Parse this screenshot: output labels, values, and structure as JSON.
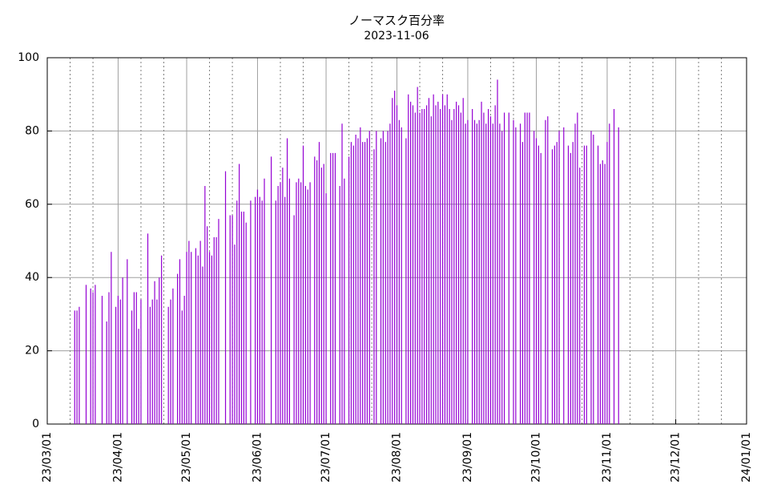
{
  "chart_data": {
    "type": "impulse",
    "title": "ノーマスク百分率",
    "subtitle": "2023-11-06",
    "color": "#9400d3",
    "xlim": [
      "2023-03-01",
      "2024-01-01"
    ],
    "xticks": [
      {
        "value": "2023-03-01",
        "label": "23/03/01"
      },
      {
        "value": "2023-04-01",
        "label": "23/04/01"
      },
      {
        "value": "2023-05-01",
        "label": "23/05/01"
      },
      {
        "value": "2023-06-01",
        "label": "23/06/01"
      },
      {
        "value": "2023-07-01",
        "label": "23/07/01"
      },
      {
        "value": "2023-08-01",
        "label": "23/08/01"
      },
      {
        "value": "2023-09-01",
        "label": "23/09/01"
      },
      {
        "value": "2023-10-01",
        "label": "23/10/01"
      },
      {
        "value": "2023-11-01",
        "label": "23/11/01"
      },
      {
        "value": "2023-12-01",
        "label": "23/12/01"
      },
      {
        "value": "2024-01-01",
        "label": "24/01/01"
      }
    ],
    "xminorticks": [
      "2023-03-11",
      "2023-03-21",
      "2023-04-11",
      "2023-04-21",
      "2023-05-11",
      "2023-05-21",
      "2023-06-11",
      "2023-06-21",
      "2023-07-11",
      "2023-07-21",
      "2023-08-11",
      "2023-08-21",
      "2023-09-11",
      "2023-09-21",
      "2023-10-11",
      "2023-10-21",
      "2023-11-11",
      "2023-11-21",
      "2023-12-11",
      "2023-12-21"
    ],
    "ylim": [
      0,
      100
    ],
    "yticks": [
      0,
      20,
      40,
      60,
      80,
      100
    ],
    "grid": true,
    "x": [
      "2023-03-13",
      "2023-03-14",
      "2023-03-15",
      "2023-03-16",
      "2023-03-17",
      "2023-03-18",
      "2023-03-19",
      "2023-03-20",
      "2023-03-21",
      "2023-03-22",
      "2023-03-23",
      "2023-03-24",
      "2023-03-25",
      "2023-03-26",
      "2023-03-27",
      "2023-03-28",
      "2023-03-29",
      "2023-03-30",
      "2023-03-31",
      "2023-04-01",
      "2023-04-02",
      "2023-04-03",
      "2023-04-04",
      "2023-04-05",
      "2023-04-06",
      "2023-04-07",
      "2023-04-08",
      "2023-04-09",
      "2023-04-10",
      "2023-04-11",
      "2023-04-12",
      "2023-04-13",
      "2023-04-14",
      "2023-04-15",
      "2023-04-16",
      "2023-04-17",
      "2023-04-18",
      "2023-04-19",
      "2023-04-20",
      "2023-04-21",
      "2023-04-22",
      "2023-04-23",
      "2023-04-24",
      "2023-04-25",
      "2023-04-26",
      "2023-04-27",
      "2023-04-28",
      "2023-04-29",
      "2023-04-30",
      "2023-05-01",
      "2023-05-02",
      "2023-05-03",
      "2023-05-04",
      "2023-05-05",
      "2023-05-06",
      "2023-05-07",
      "2023-05-08",
      "2023-05-09",
      "2023-05-10",
      "2023-05-11",
      "2023-05-12",
      "2023-05-13",
      "2023-05-14",
      "2023-05-15",
      "2023-05-16",
      "2023-05-17",
      "2023-05-18",
      "2023-05-19",
      "2023-05-20",
      "2023-05-21",
      "2023-05-22",
      "2023-05-23",
      "2023-05-24",
      "2023-05-25",
      "2023-05-26",
      "2023-05-27",
      "2023-05-28",
      "2023-05-29",
      "2023-05-30",
      "2023-05-31",
      "2023-06-01",
      "2023-06-02",
      "2023-06-03",
      "2023-06-04",
      "2023-06-05",
      "2023-06-06",
      "2023-06-07",
      "2023-06-08",
      "2023-06-09",
      "2023-06-10",
      "2023-06-11",
      "2023-06-12",
      "2023-06-13",
      "2023-06-14",
      "2023-06-15",
      "2023-06-16",
      "2023-06-17",
      "2023-06-18",
      "2023-06-19",
      "2023-06-20",
      "2023-06-21",
      "2023-06-22",
      "2023-06-23",
      "2023-06-24",
      "2023-06-25",
      "2023-06-26",
      "2023-06-27",
      "2023-06-28",
      "2023-06-29",
      "2023-06-30",
      "2023-07-01",
      "2023-07-02",
      "2023-07-03",
      "2023-07-04",
      "2023-07-05",
      "2023-07-06",
      "2023-07-07",
      "2023-07-08",
      "2023-07-09",
      "2023-07-10",
      "2023-07-11",
      "2023-07-12",
      "2023-07-13",
      "2023-07-14",
      "2023-07-15",
      "2023-07-16",
      "2023-07-17",
      "2023-07-18",
      "2023-07-19",
      "2023-07-20",
      "2023-07-21",
      "2023-07-22",
      "2023-07-23",
      "2023-07-24",
      "2023-07-25",
      "2023-07-26",
      "2023-07-27",
      "2023-07-28",
      "2023-07-29",
      "2023-07-30",
      "2023-07-31",
      "2023-08-01",
      "2023-08-02",
      "2023-08-03",
      "2023-08-04",
      "2023-08-05",
      "2023-08-06",
      "2023-08-07",
      "2023-08-08",
      "2023-08-09",
      "2023-08-10",
      "2023-08-11",
      "2023-08-12",
      "2023-08-13",
      "2023-08-14",
      "2023-08-15",
      "2023-08-16",
      "2023-08-17",
      "2023-08-18",
      "2023-08-19",
      "2023-08-20",
      "2023-08-21",
      "2023-08-22",
      "2023-08-23",
      "2023-08-24",
      "2023-08-25",
      "2023-08-26",
      "2023-08-27",
      "2023-08-28",
      "2023-08-29",
      "2023-08-30",
      "2023-08-31",
      "2023-09-01",
      "2023-09-02",
      "2023-09-03",
      "2023-09-04",
      "2023-09-05",
      "2023-09-06",
      "2023-09-07",
      "2023-09-08",
      "2023-09-09",
      "2023-09-10",
      "2023-09-11",
      "2023-09-12",
      "2023-09-13",
      "2023-09-14",
      "2023-09-15",
      "2023-09-16",
      "2023-09-17",
      "2023-09-18",
      "2023-09-19",
      "2023-09-20",
      "2023-09-21",
      "2023-09-22",
      "2023-09-23",
      "2023-09-24",
      "2023-09-25",
      "2023-09-26",
      "2023-09-27",
      "2023-09-28",
      "2023-09-29",
      "2023-09-30",
      "2023-10-01",
      "2023-10-02",
      "2023-10-03",
      "2023-10-04",
      "2023-10-05",
      "2023-10-06",
      "2023-10-07",
      "2023-10-08",
      "2023-10-09",
      "2023-10-10",
      "2023-10-11",
      "2023-10-12",
      "2023-10-13",
      "2023-10-14",
      "2023-10-15",
      "2023-10-16",
      "2023-10-17",
      "2023-10-18",
      "2023-10-19",
      "2023-10-20",
      "2023-10-21",
      "2023-10-22",
      "2023-10-23",
      "2023-10-24",
      "2023-10-25",
      "2023-10-26",
      "2023-10-27",
      "2023-10-28",
      "2023-10-29",
      "2023-10-30",
      "2023-10-31",
      "2023-11-01",
      "2023-11-02",
      "2023-11-03",
      "2023-11-04",
      "2023-11-05",
      "2023-11-06"
    ],
    "values": [
      31,
      31,
      32,
      null,
      null,
      38,
      null,
      37,
      36,
      38,
      null,
      null,
      35,
      null,
      28,
      36,
      47,
      null,
      32,
      35,
      34,
      40,
      null,
      45,
      null,
      31,
      36,
      36,
      26,
      34,
      null,
      null,
      52,
      32,
      34,
      39,
      34,
      40,
      46,
      null,
      null,
      32,
      34,
      37,
      null,
      41,
      45,
      31,
      35,
      47,
      50,
      47,
      null,
      48,
      46,
      50,
      43,
      65,
      54,
      47,
      46,
      51,
      51,
      56,
      null,
      null,
      69,
      null,
      57,
      57,
      49,
      61,
      71,
      58,
      58,
      55,
      null,
      61,
      null,
      62,
      64,
      62,
      61,
      67,
      null,
      null,
      73,
      null,
      61,
      65,
      66,
      70,
      62,
      78,
      67,
      null,
      57,
      66,
      67,
      66,
      76,
      65,
      64,
      66,
      null,
      73,
      72,
      77,
      70,
      71,
      63,
      null,
      74,
      74,
      74,
      null,
      65,
      82,
      67,
      null,
      73,
      77,
      76,
      79,
      78,
      81,
      77,
      77,
      78,
      80,
      null,
      75,
      80,
      null,
      78,
      80,
      77,
      80,
      82,
      89,
      91,
      87,
      83,
      81,
      null,
      78,
      90,
      88,
      87,
      85,
      92,
      85,
      86,
      86,
      87,
      89,
      84,
      90,
      87,
      88,
      86,
      90,
      87,
      90,
      86,
      83,
      86,
      88,
      87,
      85,
      89,
      82,
      83,
      null,
      86,
      83,
      82,
      83,
      88,
      85,
      82,
      86,
      84,
      82,
      87,
      94,
      82,
      80,
      85,
      null,
      85,
      null,
      83,
      81,
      null,
      82,
      77,
      85,
      85,
      85,
      null,
      80,
      78,
      76,
      74,
      null,
      83,
      84,
      null,
      75,
      76,
      77,
      80,
      null,
      81,
      null,
      76,
      74,
      77,
      82,
      85,
      70,
      null,
      76,
      76,
      null,
      80,
      79,
      null,
      76,
      71,
      72,
      71,
      77,
      82,
      null,
      86,
      null,
      81
    ]
  }
}
